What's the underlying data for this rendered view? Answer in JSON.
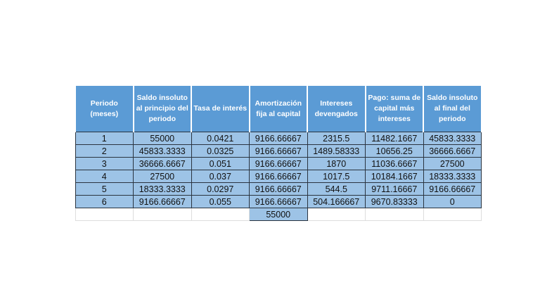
{
  "table": {
    "headers": [
      "Periodo (meses)",
      "Saldo insoluto al principio del periodo",
      "Tasa de interés",
      "Amortización fija al capital",
      "Intereses devengados",
      "Pago: suma de capital más intereses",
      "Saldo insoluto al final del periodo"
    ],
    "rows": [
      [
        "1",
        "55000",
        "0.0421",
        "9166.66667",
        "2315.5",
        "11482.1667",
        "45833.3333"
      ],
      [
        "2",
        "45833.3333",
        "0.0325",
        "9166.66667",
        "1489.58333",
        "10656.25",
        "36666.6667"
      ],
      [
        "3",
        "36666.6667",
        "0.051",
        "9166.66667",
        "1870",
        "11036.6667",
        "27500"
      ],
      [
        "4",
        "27500",
        "0.037",
        "9166.66667",
        "1017.5",
        "10184.1667",
        "18333.3333"
      ],
      [
        "5",
        "18333.3333",
        "0.0297",
        "9166.66667",
        "544.5",
        "9711.16667",
        "9166.66667"
      ],
      [
        "6",
        "9166.66667",
        "0.055",
        "9166.66667",
        "504.166667",
        "9670.83333",
        "0"
      ]
    ],
    "total_amortizacion": "55000"
  },
  "colors": {
    "header": "#5b9bd5",
    "cell": "#9dc3e6"
  }
}
